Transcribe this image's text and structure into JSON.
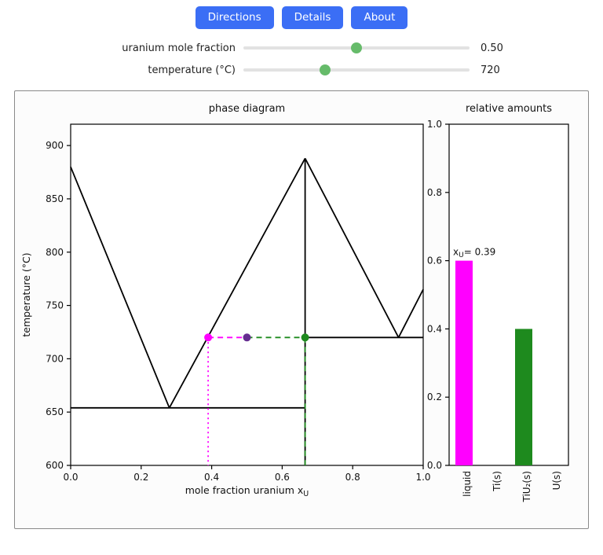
{
  "toolbar": {
    "buttons": [
      "Directions",
      "Details",
      "About"
    ]
  },
  "controls": {
    "sliders": [
      {
        "label": "uranium mole fraction",
        "value": "0.50",
        "fraction": 0.5
      },
      {
        "label": "temperature (°C)",
        "value": "720",
        "fraction": 0.36
      }
    ]
  },
  "colors": {
    "button_bg": "#3b6ef5",
    "button_text": "#ffffff",
    "slider_track": "#e2e2e2",
    "slider_knob": "#66bb6a",
    "panel_border": "#8a8a8a",
    "phase_line": "#000000",
    "liquid_magenta": "#ff00ff",
    "overall_purple": "#662d91",
    "solid_green": "#1e8a1e"
  },
  "chart_data": [
    {
      "type": "line",
      "title": "phase diagram",
      "xlabel": {
        "text": "mole fraction uranium x",
        "sub": "U"
      },
      "ylabel": "temperature (°C)",
      "xlim": [
        0,
        1
      ],
      "ylim": [
        600,
        920
      ],
      "xticks": [
        {
          "v": 0.0,
          "label": "0.0"
        },
        {
          "v": 0.2,
          "label": "0.2"
        },
        {
          "v": 0.4,
          "label": "0.4"
        },
        {
          "v": 0.6,
          "label": "0.6"
        },
        {
          "v": 0.8,
          "label": "0.8"
        },
        {
          "v": 1.0,
          "label": "1.0"
        }
      ],
      "yticks": [
        {
          "v": 600,
          "label": "600"
        },
        {
          "v": 650,
          "label": "650"
        },
        {
          "v": 700,
          "label": "700"
        },
        {
          "v": 750,
          "label": "750"
        },
        {
          "v": 800,
          "label": "800"
        },
        {
          "v": 850,
          "label": "850"
        },
        {
          "v": 900,
          "label": "900"
        }
      ],
      "line_color": "#000000",
      "series": [
        {
          "name": "left-liquidus",
          "points": [
            [
              0,
              880
            ],
            [
              0.28,
              654
            ]
          ]
        },
        {
          "name": "left-eutectic-line",
          "points": [
            [
              0,
              654
            ],
            [
              0.665,
              654
            ]
          ]
        },
        {
          "name": "liquidus-to-peak",
          "points": [
            [
              0.28,
              654
            ],
            [
              0.665,
              888
            ]
          ]
        },
        {
          "name": "compound-vertical",
          "points": [
            [
              0.665,
              600
            ],
            [
              0.665,
              888
            ]
          ]
        },
        {
          "name": "right-liquidus-down",
          "points": [
            [
              0.665,
              888
            ],
            [
              0.93,
              720
            ]
          ]
        },
        {
          "name": "right-liquidus-up",
          "points": [
            [
              0.93,
              720
            ],
            [
              1.0,
              765
            ]
          ]
        },
        {
          "name": "right-eutectic-line",
          "points": [
            [
              0.665,
              720
            ],
            [
              1.0,
              720
            ]
          ]
        }
      ],
      "tie_lines": [
        {
          "name": "liquid-tie",
          "color": "#ff00ff",
          "dash": "7 5",
          "points": [
            [
              0.39,
              720
            ],
            [
              0.5,
              720
            ]
          ]
        },
        {
          "name": "solid-tie",
          "color": "#1e8a1e",
          "dash": "7 5",
          "points": [
            [
              0.5,
              720
            ],
            [
              0.665,
              720
            ]
          ]
        },
        {
          "name": "liquid-drop",
          "color": "#ff00ff",
          "dash": "2 4",
          "points": [
            [
              0.39,
              720
            ],
            [
              0.39,
              600
            ]
          ]
        },
        {
          "name": "solid-drop",
          "color": "#1e8a1e",
          "dash": "7 5",
          "points": [
            [
              0.665,
              720
            ],
            [
              0.665,
              600
            ]
          ]
        }
      ],
      "markers": [
        {
          "name": "liquid-composition",
          "x": 0.39,
          "y": 720,
          "color": "#ff00ff"
        },
        {
          "name": "overall-composition",
          "x": 0.5,
          "y": 720,
          "color": "#662d91"
        },
        {
          "name": "solid-composition",
          "x": 0.665,
          "y": 720,
          "color": "#1e8a1e"
        }
      ]
    },
    {
      "type": "bar",
      "title": "relative amounts",
      "categories": [
        "liquid",
        "Ti(s)",
        "TiU₂(s)",
        "U(s)"
      ],
      "values": [
        0.6,
        0,
        0.4,
        0
      ],
      "colors": [
        "#ff00ff",
        "#000000",
        "#1e8a1e",
        "#000000"
      ],
      "ylim": [
        0,
        1.0
      ],
      "yticks": [
        {
          "v": 0.0,
          "label": "0.0"
        },
        {
          "v": 0.2,
          "label": "0.2"
        },
        {
          "v": 0.4,
          "label": "0.4"
        },
        {
          "v": 0.6,
          "label": "0.6"
        },
        {
          "v": 0.8,
          "label": "0.8"
        },
        {
          "v": 1.0,
          "label": "1.0"
        }
      ],
      "annotation": {
        "pre": "x",
        "sub": "U",
        "post": "= 0.39",
        "bar_index": 0
      }
    }
  ]
}
